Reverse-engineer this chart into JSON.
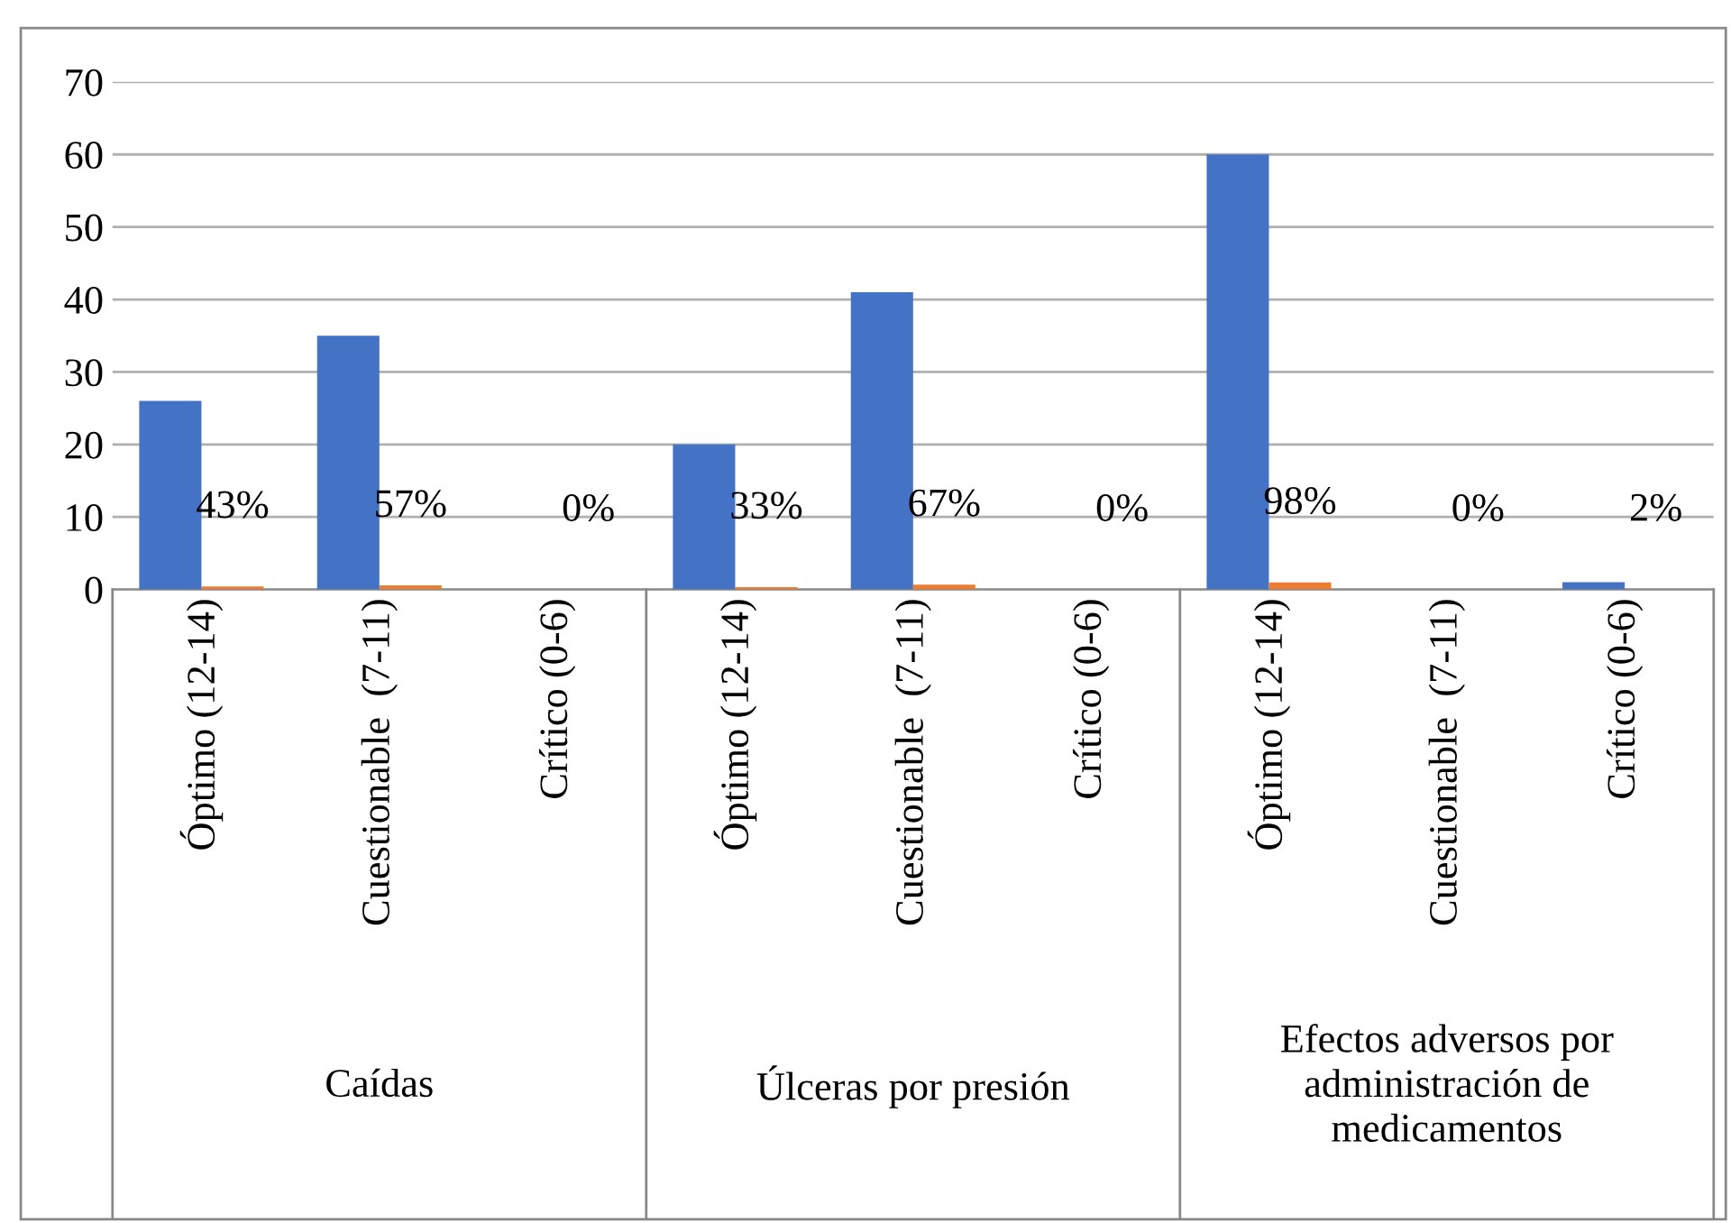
{
  "chart_data": {
    "type": "bar",
    "categories": [
      "Óptimo (12-14)",
      "Cuestionable  (7-11)",
      "Crítico (0-6)",
      "Óptimo (12-14)",
      "Cuestionable  (7-11)",
      "Crítico (0-6)",
      "Óptimo (12-14)",
      "Cuestionable  (7-11)",
      "Crítico (0-6)"
    ],
    "series": [
      {
        "color": "#4472c4",
        "values": [
          26,
          35,
          0,
          20,
          41,
          0,
          60,
          0,
          1
        ]
      },
      {
        "color": "#ed7d31",
        "values": [
          0.43,
          0.57,
          0,
          0.33,
          0.67,
          0,
          0.98,
          0,
          0.02
        ],
        "value_labels": [
          "43%",
          "57%",
          "0%",
          "33%",
          "67%",
          "0%",
          "98%",
          "0%",
          "2%"
        ]
      }
    ],
    "annotations": [
      "Caídas",
      "Úlceras por presión",
      "Efectos adversos por\nadministración de\nmedicamentos"
    ],
    "ylim": [
      0,
      70
    ],
    "yticks": [
      0,
      10,
      20,
      30,
      40,
      50,
      60,
      70
    ],
    "grid": "y",
    "legend": false
  }
}
